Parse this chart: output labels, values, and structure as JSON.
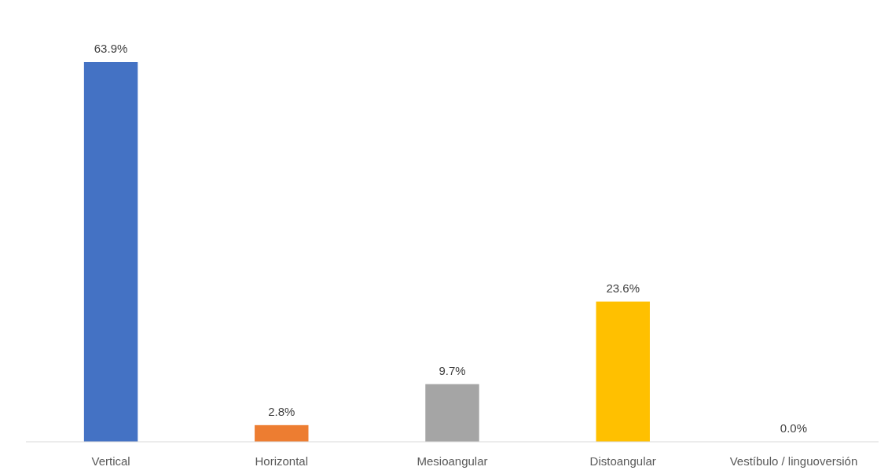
{
  "chart_data": {
    "type": "bar",
    "categories": [
      "Vertical",
      "Horizontal",
      "Mesioangular",
      "Distoangular",
      "Vestíbulo / linguoversión"
    ],
    "values": [
      63.9,
      2.8,
      9.7,
      23.6,
      0.0
    ],
    "colors": [
      "#4472c4",
      "#ed7d31",
      "#a5a5a5",
      "#ffc000",
      "#5b9bd5"
    ],
    "value_labels": [
      "63.9%",
      "2.8%",
      "9.7%",
      "23.6%",
      "0.0%"
    ]
  }
}
